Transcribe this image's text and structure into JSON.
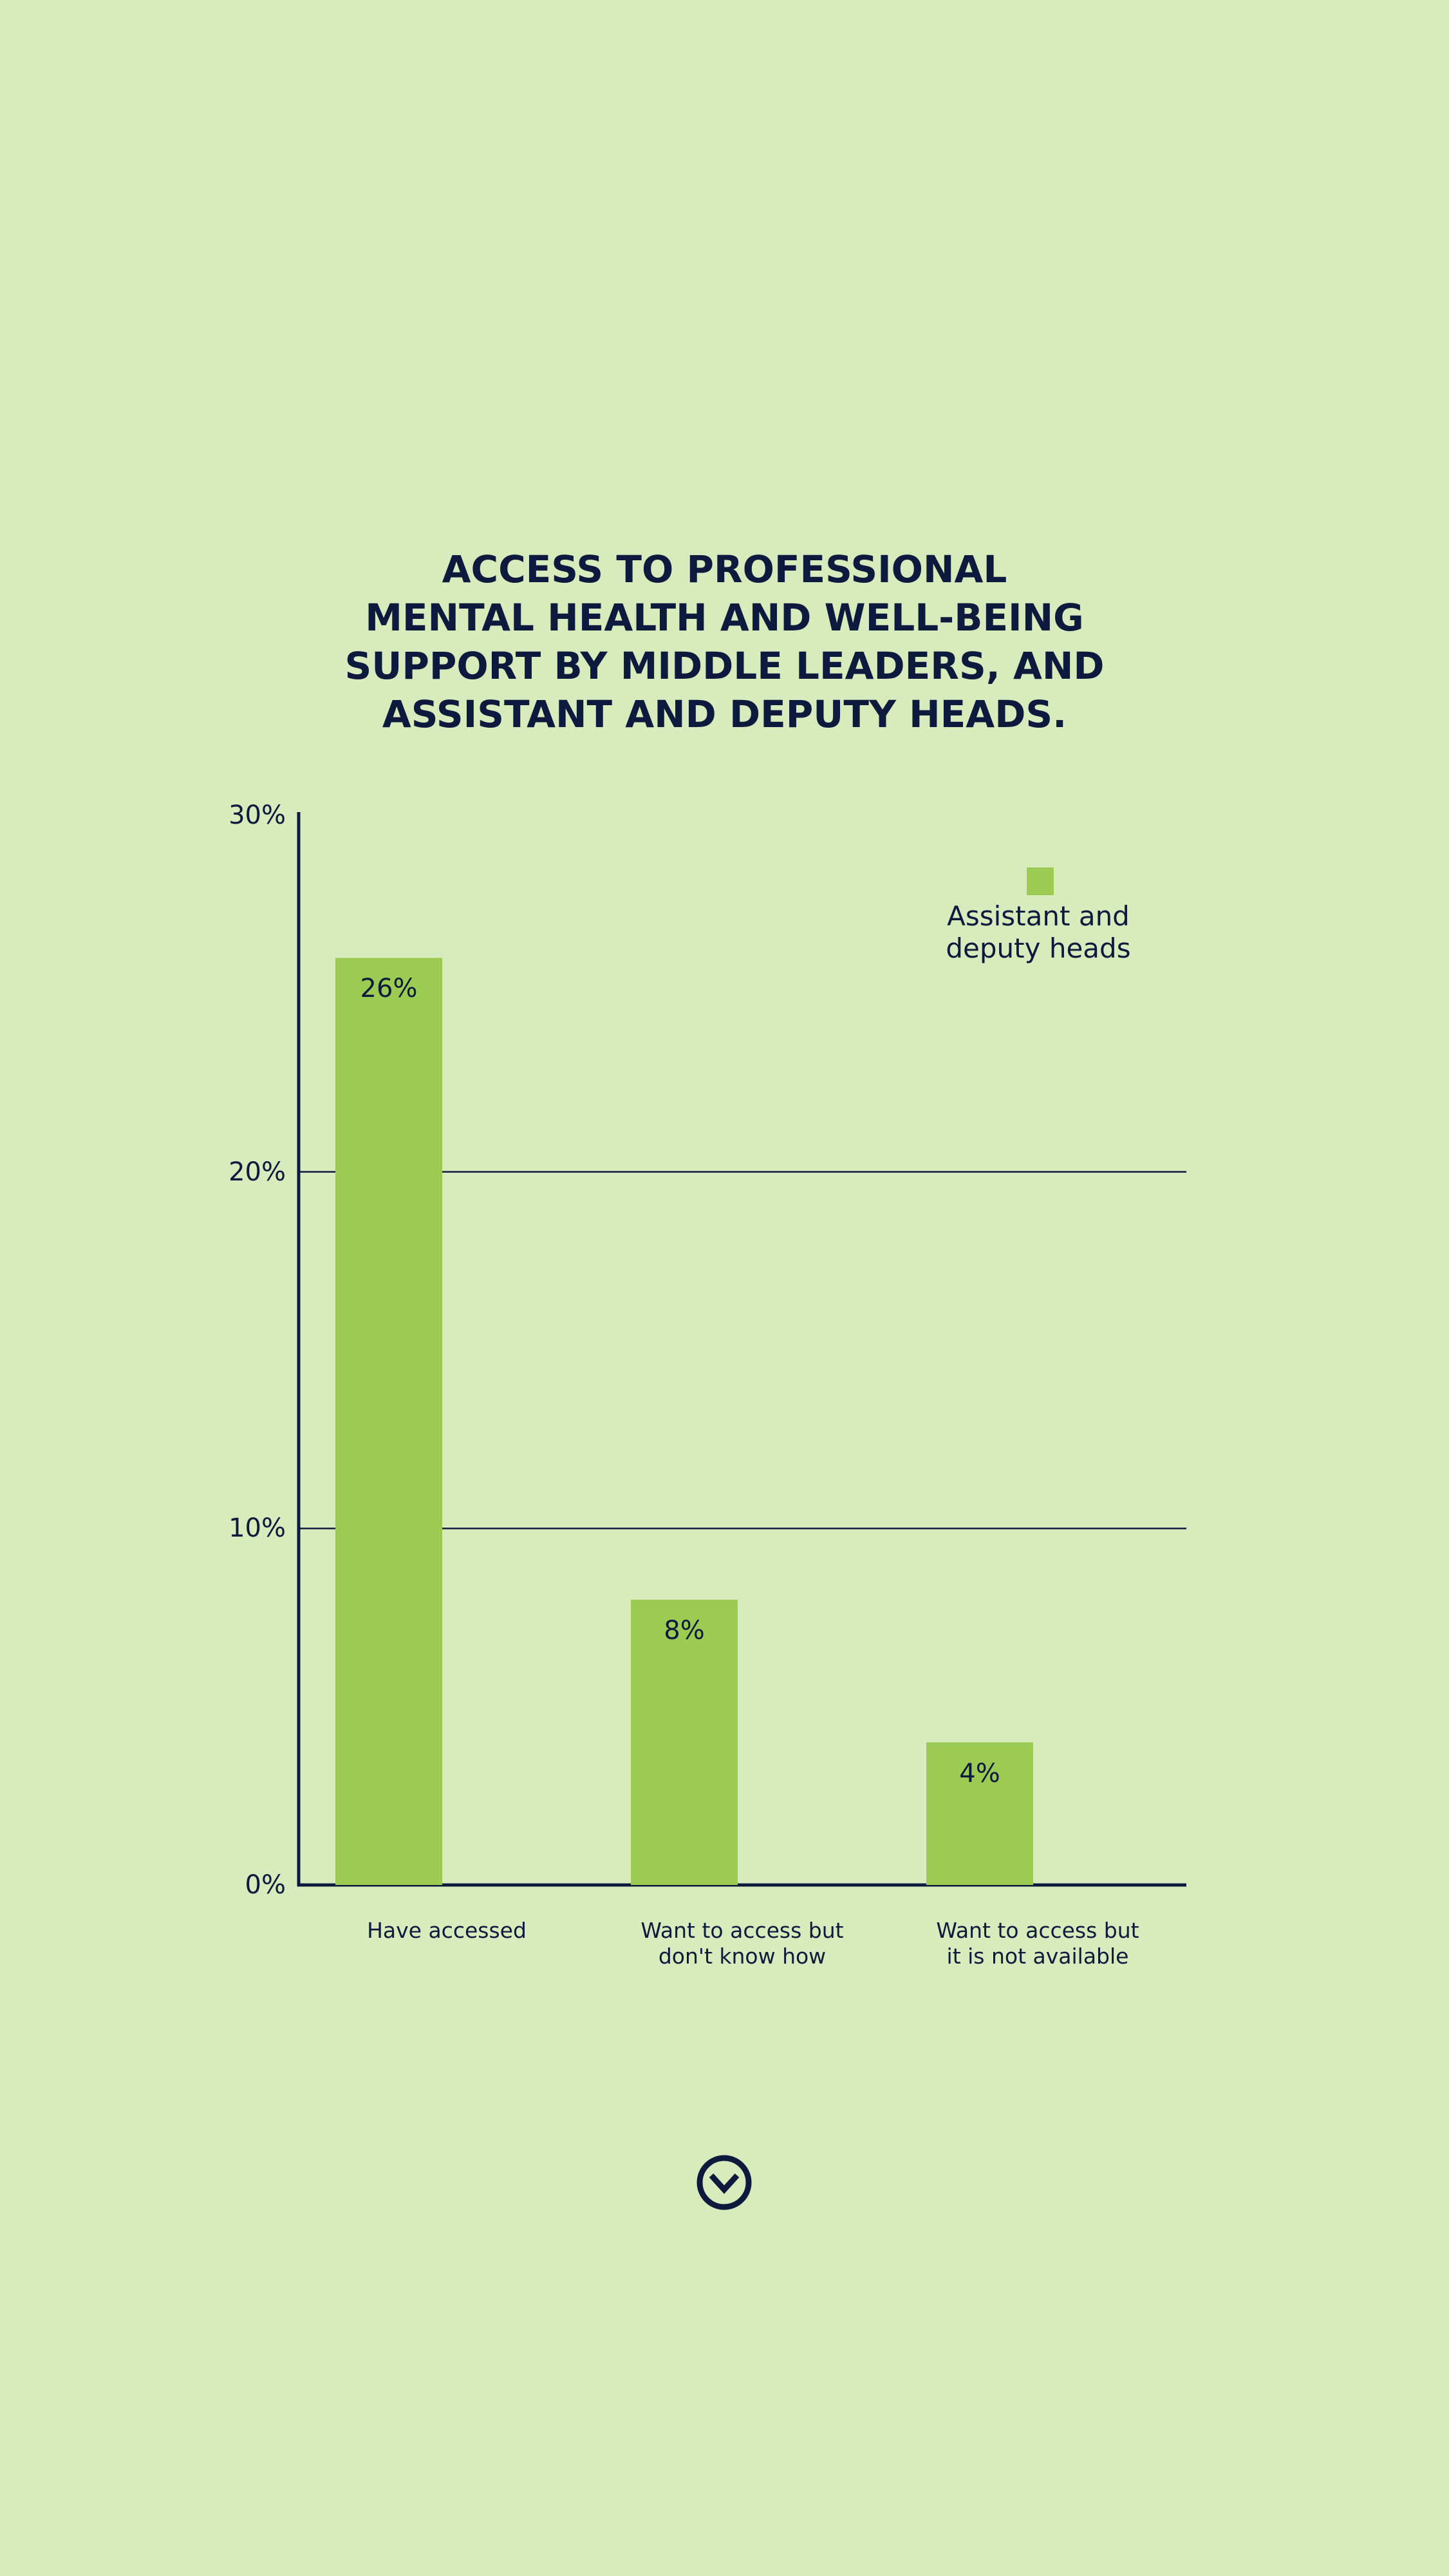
{
  "chart_data": {
    "type": "bar",
    "title": [
      "ACCESS TO PROFESSIONAL",
      "MENTAL HEALTH AND WELL-BEING",
      "SUPPORT BY MIDDLE LEADERS, AND",
      "ASSISTANT AND DEPUTY HEADS."
    ],
    "categories": [
      "Have accessed",
      "Want to access but don't know how",
      "Want to access but it is not available"
    ],
    "series": [
      {
        "name": "Assistant and deputy heads",
        "color": "#9bcb53",
        "values": [
          26,
          8,
          4
        ],
        "value_labels": [
          "26%",
          "8%",
          "4%"
        ]
      }
    ],
    "ylim": [
      0,
      30
    ],
    "yticks": [
      {
        "value": 0,
        "label": "0%"
      },
      {
        "value": 10,
        "label": "10%"
      },
      {
        "value": 20,
        "label": "20%"
      },
      {
        "value": 30,
        "label": "30%"
      }
    ],
    "grid": true,
    "legend": "upper right"
  }
}
